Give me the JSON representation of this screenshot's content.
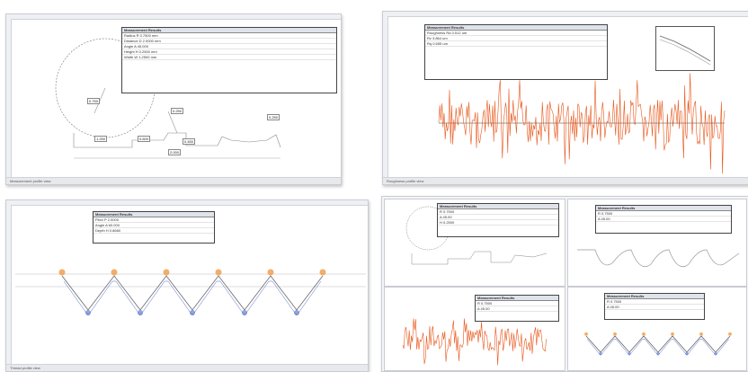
{
  "panels": [
    {
      "id": "p1",
      "table_title": "Measurement Results",
      "rows": [
        "Radius  R  0.7500 mm",
        "Distance  D  2.0000 mm",
        "Angle  A  45.000",
        "Height  H  0.2500 mm",
        "Width  W  1.2500 mm"
      ],
      "status": "Measurement profile view"
    },
    {
      "id": "p2",
      "table_title": "Measurement Results",
      "rows": [
        "Roughness  Ra  0.512 um",
        "Rz  3.864 um",
        "Rq  0.655 um"
      ],
      "status": "Roughness profile view"
    },
    {
      "id": "p3",
      "table_title": "Measurement Results",
      "rows": [
        "Pitch  P  2.0000",
        "Angle  A  60.000",
        "Depth  H  0.8660"
      ],
      "status": "Thread profile view"
    },
    {
      "id": "p4",
      "table_title": "Measurement Results",
      "rows": [
        "R  0.7500",
        "A  45.00",
        "H  0.2500"
      ],
      "status": "Multi view"
    }
  ],
  "labels": {
    "dim1": "0.750",
    "dim2": "1.250",
    "dim3": "0.600",
    "dim4": "0.250",
    "dim5": "2.000",
    "dim6": "0.450"
  },
  "colors": {
    "profile": "#9aa0a8",
    "noise": "#e8561a",
    "thread_orange": "#ef9a45",
    "thread_blue": "#4a67c8",
    "frame": "#c9ccd2"
  }
}
